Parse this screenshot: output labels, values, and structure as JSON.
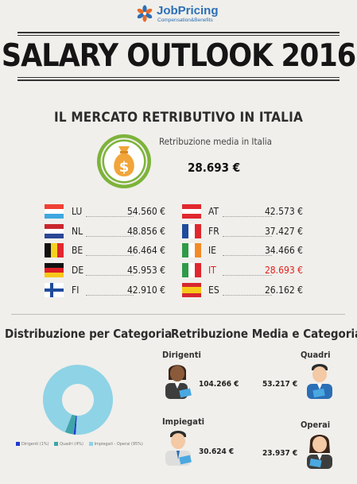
{
  "logo": {
    "name": "JobPricing",
    "tagline": "Compensation&Benefits"
  },
  "title": "SALARY OUTLOOK 2016",
  "section_title": "IL MERCATO RETRIBUTIVO IN ITALIA",
  "average": {
    "label": "Retribuzione media in Italia",
    "value": "28.693 €"
  },
  "countries_left": [
    {
      "code": "LU",
      "value": "54.560 €"
    },
    {
      "code": "NL",
      "value": "48.856 €"
    },
    {
      "code": "BE",
      "value": "46.464 €"
    },
    {
      "code": "DE",
      "value": "45.953 €"
    },
    {
      "code": "FI",
      "value": "42.910 €"
    }
  ],
  "countries_right": [
    {
      "code": "AT",
      "value": "42.573 €"
    },
    {
      "code": "FR",
      "value": "37.427 €"
    },
    {
      "code": "IE",
      "value": "34.466 €"
    },
    {
      "code": "IT",
      "value": "28.693 €"
    },
    {
      "code": "ES",
      "value": "26.162 €"
    }
  ],
  "highlight_color": "#e0201c",
  "distribution": {
    "title": "Distribuzione per Categoria",
    "legend": [
      {
        "label": "Dirigenti (1%)",
        "color": "#1f3bd1"
      },
      {
        "label": "Quadri (4%)",
        "color": "#3fa5a8"
      },
      {
        "label": "Impiegati - Operai (95%)",
        "color": "#8fd3e6"
      }
    ]
  },
  "chart_data": {
    "type": "pie",
    "categories": [
      "Dirigenti",
      "Quadri",
      "Impiegati - Operai"
    ],
    "values": [
      1,
      4,
      95
    ],
    "colors": [
      "#1f3bd1",
      "#3fa5a8",
      "#8fd3e6"
    ],
    "donut": true,
    "legend_position": "bottom"
  },
  "categories": {
    "title": "Retribuzione Media e Categoria",
    "items": [
      {
        "name": "Dirigenti",
        "value": "104.266 €"
      },
      {
        "name": "Quadri",
        "value": "53.217 €"
      },
      {
        "name": "Impiegati",
        "value": "30.624 €"
      },
      {
        "name": "Operai",
        "value": "23.937 €"
      }
    ]
  }
}
